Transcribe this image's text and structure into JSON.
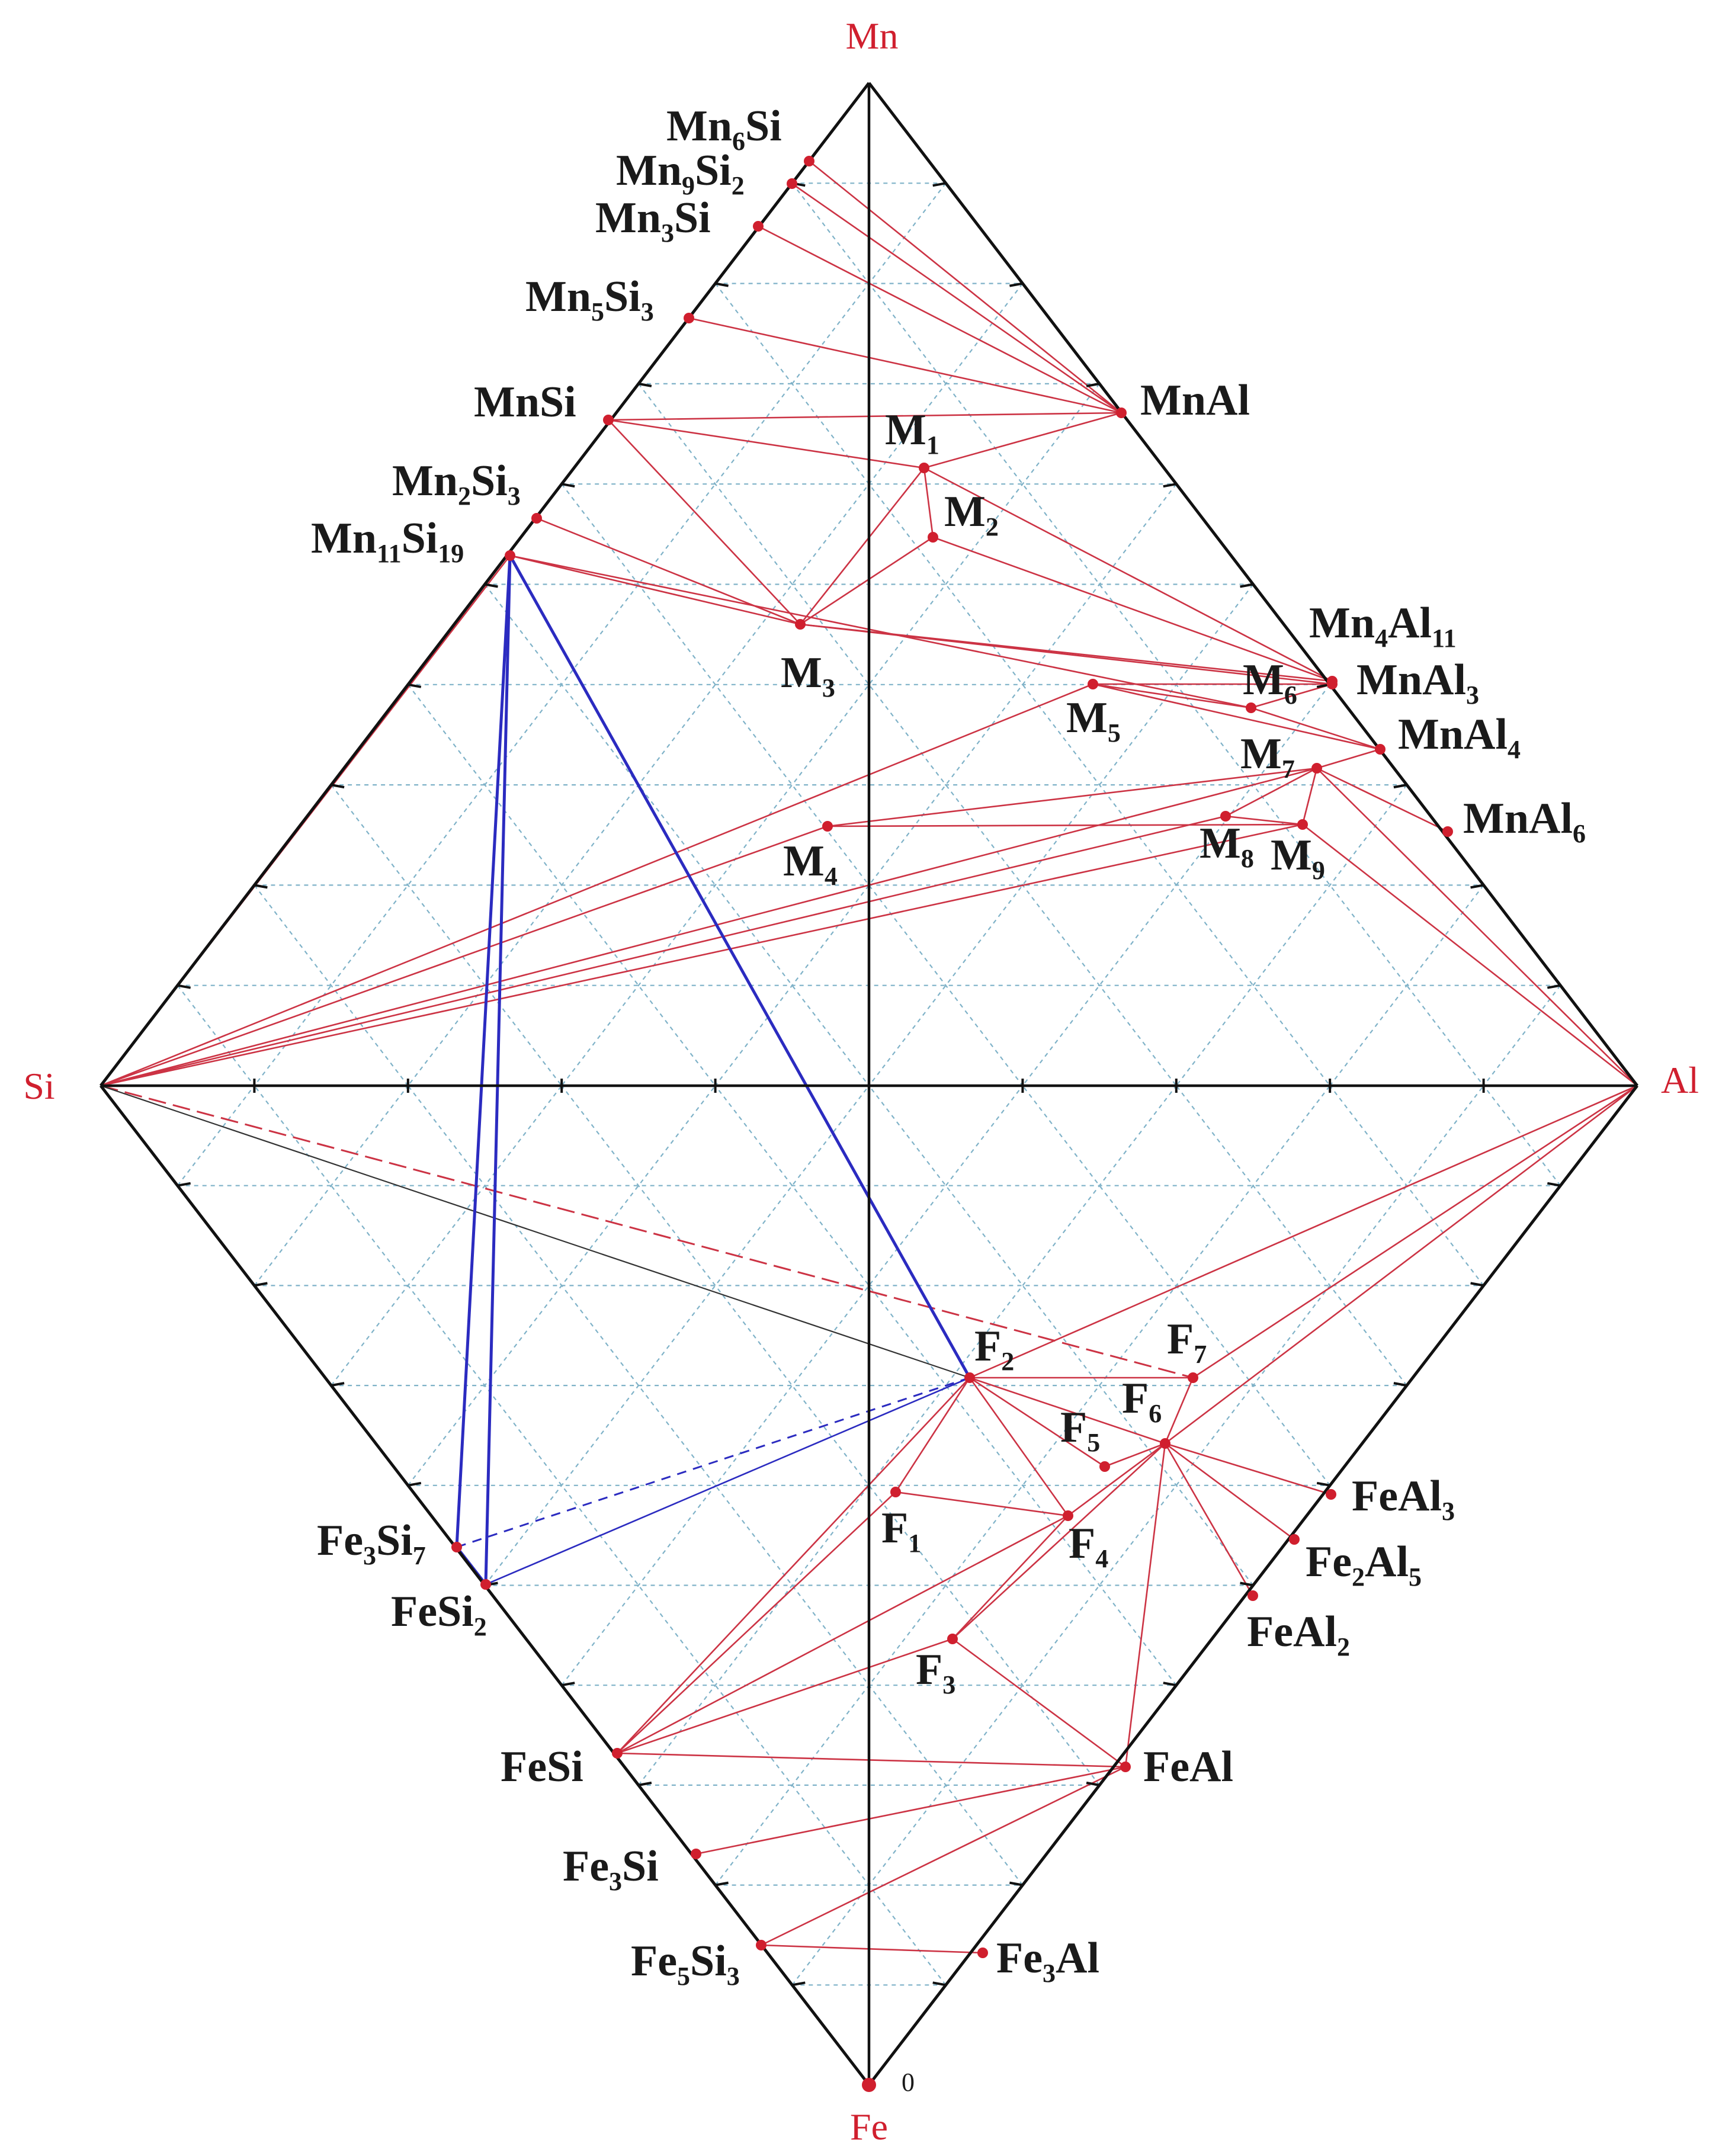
{
  "vertices": {
    "top": "Mn",
    "left": "Si",
    "right": "Al",
    "bottom": "Fe",
    "zero_label": "0"
  },
  "phases": [
    {
      "id": "Mn6Si",
      "parts": [
        [
          "Mn",
          ""
        ],
        [
          "6",
          "s"
        ],
        [
          "Si",
          ""
        ]
      ]
    },
    {
      "id": "Mn9Si2",
      "parts": [
        [
          "Mn",
          ""
        ],
        [
          "9",
          "s"
        ],
        [
          "Si",
          ""
        ],
        [
          "2",
          "s"
        ]
      ]
    },
    {
      "id": "Mn3Si",
      "parts": [
        [
          "Mn",
          ""
        ],
        [
          "3",
          "s"
        ],
        [
          "Si",
          ""
        ]
      ]
    },
    {
      "id": "Mn5Si3",
      "parts": [
        [
          "Mn",
          ""
        ],
        [
          "5",
          "s"
        ],
        [
          "Si",
          ""
        ],
        [
          "3",
          "s"
        ]
      ]
    },
    {
      "id": "MnSi",
      "parts": [
        [
          "MnSi",
          ""
        ]
      ]
    },
    {
      "id": "Mn2Si3",
      "parts": [
        [
          "Mn",
          ""
        ],
        [
          "2",
          "s"
        ],
        [
          "Si",
          ""
        ],
        [
          "3",
          "s"
        ]
      ]
    },
    {
      "id": "Mn11Si19",
      "parts": [
        [
          "Mn",
          ""
        ],
        [
          "11",
          "s"
        ],
        [
          "Si",
          ""
        ],
        [
          "19",
          "s"
        ]
      ]
    },
    {
      "id": "MnAl",
      "parts": [
        [
          "MnAl",
          ""
        ]
      ]
    },
    {
      "id": "Mn4Al11",
      "parts": [
        [
          "Mn",
          ""
        ],
        [
          "4",
          "s"
        ],
        [
          "Al",
          ""
        ],
        [
          "11",
          "s"
        ]
      ]
    },
    {
      "id": "MnAl3",
      "parts": [
        [
          "MnAl",
          ""
        ],
        [
          "3",
          "s"
        ]
      ]
    },
    {
      "id": "MnAl4",
      "parts": [
        [
          "MnAl",
          ""
        ],
        [
          "4",
          "s"
        ]
      ]
    },
    {
      "id": "MnAl6",
      "parts": [
        [
          "MnAl",
          ""
        ],
        [
          "6",
          "s"
        ]
      ]
    },
    {
      "id": "M1",
      "parts": [
        [
          "M",
          ""
        ],
        [
          "1",
          "s"
        ]
      ]
    },
    {
      "id": "M2",
      "parts": [
        [
          "M",
          ""
        ],
        [
          "2",
          "s"
        ]
      ]
    },
    {
      "id": "M3",
      "parts": [
        [
          "M",
          ""
        ],
        [
          "3",
          "s"
        ]
      ]
    },
    {
      "id": "M4",
      "parts": [
        [
          "M",
          ""
        ],
        [
          "4",
          "s"
        ]
      ]
    },
    {
      "id": "M5",
      "parts": [
        [
          "M",
          ""
        ],
        [
          "5",
          "s"
        ]
      ]
    },
    {
      "id": "M6",
      "parts": [
        [
          "M",
          ""
        ],
        [
          "6",
          "s"
        ]
      ]
    },
    {
      "id": "M7",
      "parts": [
        [
          "M",
          ""
        ],
        [
          "7",
          "s"
        ]
      ]
    },
    {
      "id": "M8",
      "parts": [
        [
          "M",
          ""
        ],
        [
          "8",
          "s"
        ]
      ]
    },
    {
      "id": "M9",
      "parts": [
        [
          "M",
          ""
        ],
        [
          "9",
          "s"
        ]
      ]
    },
    {
      "id": "F1",
      "parts": [
        [
          "F",
          ""
        ],
        [
          "1",
          "s"
        ]
      ]
    },
    {
      "id": "F2",
      "parts": [
        [
          "F",
          ""
        ],
        [
          "2",
          "s"
        ]
      ]
    },
    {
      "id": "F3",
      "parts": [
        [
          "F",
          ""
        ],
        [
          "3",
          "s"
        ]
      ]
    },
    {
      "id": "F4",
      "parts": [
        [
          "F",
          ""
        ],
        [
          "4",
          "s"
        ]
      ]
    },
    {
      "id": "F5",
      "parts": [
        [
          "F",
          ""
        ],
        [
          "5",
          "s"
        ]
      ]
    },
    {
      "id": "F6",
      "parts": [
        [
          "F",
          ""
        ],
        [
          "6",
          "s"
        ]
      ]
    },
    {
      "id": "F7",
      "parts": [
        [
          "F",
          ""
        ],
        [
          "7",
          "s"
        ]
      ]
    },
    {
      "id": "FeAl3",
      "parts": [
        [
          "FeAl",
          ""
        ],
        [
          "3",
          "s"
        ]
      ]
    },
    {
      "id": "Fe2Al5",
      "parts": [
        [
          "Fe",
          ""
        ],
        [
          "2",
          "s"
        ],
        [
          "Al",
          ""
        ],
        [
          "5",
          "s"
        ]
      ]
    },
    {
      "id": "FeAl2",
      "parts": [
        [
          "FeAl",
          ""
        ],
        [
          "2",
          "s"
        ]
      ]
    },
    {
      "id": "FeAl",
      "parts": [
        [
          "FeAl",
          ""
        ]
      ]
    },
    {
      "id": "Fe3Al",
      "parts": [
        [
          "Fe",
          ""
        ],
        [
          "3",
          "s"
        ],
        [
          "Al",
          ""
        ]
      ]
    },
    {
      "id": "Fe3Si7",
      "parts": [
        [
          "Fe",
          ""
        ],
        [
          "3",
          "s"
        ],
        [
          "Si",
          ""
        ],
        [
          "7",
          "s"
        ]
      ]
    },
    {
      "id": "FeSi2",
      "parts": [
        [
          "FeSi",
          ""
        ],
        [
          "2",
          "s"
        ]
      ]
    },
    {
      "id": "FeSi",
      "parts": [
        [
          "FeSi",
          ""
        ]
      ]
    },
    {
      "id": "Fe3Si",
      "parts": [
        [
          "Fe",
          ""
        ],
        [
          "3",
          "s"
        ],
        [
          "Si",
          ""
        ]
      ]
    },
    {
      "id": "Fe5Si3",
      "parts": [
        [
          "Fe",
          ""
        ],
        [
          "5",
          "s"
        ],
        [
          "Si",
          ""
        ],
        [
          "3",
          "s"
        ]
      ]
    }
  ],
  "colors": {
    "frame": "#111111",
    "tie_line": "#cc3344",
    "blue_tie": "#2b2bc0",
    "grid": "#7fb2c8",
    "vertex_label": "#d01f2e",
    "point": "#d01f2e"
  }
}
